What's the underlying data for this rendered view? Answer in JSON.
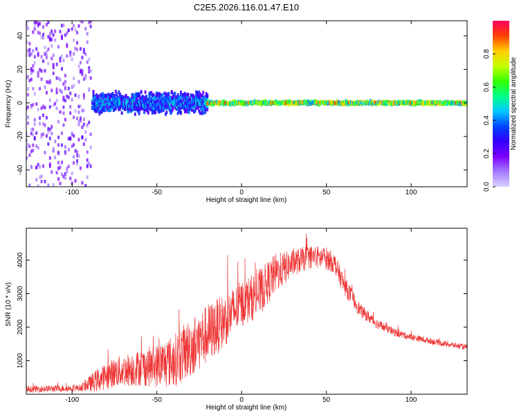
{
  "figure_title": "C2E5.2026.116.01.47.E10",
  "colors": {
    "snr_line": "#ee3333",
    "spectrum_background": "#ffffff",
    "colorbar_stops": [
      "#d9d0ff",
      "#a47cff",
      "#7c00ff",
      "#3300ff",
      "#0044ff",
      "#00c8ff",
      "#00ff88",
      "#33ff00",
      "#c8ff00",
      "#ffcc00",
      "#ff4000",
      "#ff0060"
    ]
  },
  "chart_data": [
    {
      "type": "heatmap",
      "title": "",
      "xlabel": "Height of straight line (km)",
      "ylabel": "Frequency (Hz)",
      "xlim": [
        -127,
        133
      ],
      "ylim": [
        -50,
        49
      ],
      "x_ticks": [
        -100,
        -50,
        0,
        50,
        100
      ],
      "y_ticks": [
        -40,
        -20,
        0,
        20,
        40
      ],
      "colorbar": {
        "label": "Normalized spectral amplitude",
        "range": [
          0,
          1
        ],
        "ticks": [
          0.0,
          0.2,
          0.4,
          0.6,
          0.8
        ]
      },
      "description_segments": [
        {
          "x_range": [
            -127,
            -88
          ],
          "freq_spread": [
            -50,
            49
          ],
          "amplitude": [
            0.05,
            0.25
          ]
        },
        {
          "x_range": [
            -88,
            -20
          ],
          "freq_spread": [
            -8,
            8
          ],
          "amplitude": [
            0.2,
            0.55
          ]
        },
        {
          "x_range": [
            -20,
            133
          ],
          "freq_spread": [
            -2,
            2
          ],
          "amplitude": [
            0.4,
            0.95
          ]
        }
      ]
    },
    {
      "type": "line",
      "title": "",
      "xlabel": "Height of straight line (km)",
      "ylabel": "SNR (10 * v/v)",
      "xlim": [
        -127,
        133
      ],
      "ylim": [
        0,
        4950
      ],
      "x_ticks": [
        -100,
        -50,
        0,
        50,
        100
      ],
      "y_ticks": [
        1000,
        2000,
        3000,
        4000
      ],
      "envelope": {
        "x": [
          -127,
          -110,
          -95,
          -85,
          -75,
          -60,
          -50,
          -40,
          -30,
          -20,
          -10,
          0,
          10,
          20,
          30,
          40,
          50,
          55,
          60,
          70,
          80,
          90,
          100,
          110,
          120,
          133
        ],
        "mean": [
          150,
          170,
          190,
          420,
          650,
          800,
          850,
          1000,
          1400,
          1800,
          2200,
          2700,
          3000,
          3600,
          3900,
          4100,
          4050,
          3900,
          3300,
          2500,
          2100,
          1850,
          1700,
          1600,
          1500,
          1400
        ],
        "noise": [
          100,
          100,
          100,
          350,
          450,
          550,
          650,
          800,
          900,
          900,
          800,
          700,
          700,
          600,
          400,
          350,
          350,
          300,
          300,
          200,
          150,
          120,
          100,
          90,
          90,
          80
        ]
      }
    }
  ]
}
